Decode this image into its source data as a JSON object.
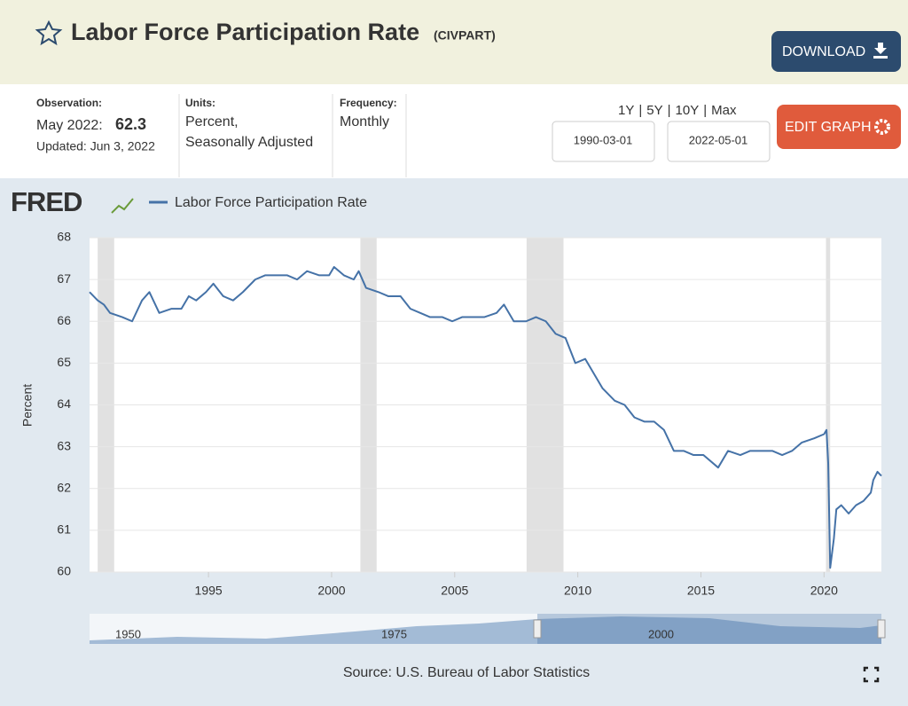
{
  "header": {
    "title": "Labor Force Participation Rate",
    "series_id": "(CIVPART)",
    "download": "DOWNLOAD"
  },
  "info": {
    "observation_label": "Observation:",
    "observation_date": "May 2022:",
    "observation_value": "62.3",
    "updated": "Updated: Jun 3, 2022",
    "units_label": "Units:",
    "units": [
      "Percent,",
      "Seasonally Adjusted"
    ],
    "frequency_label": "Frequency:",
    "frequency": "Monthly",
    "ranges": [
      "1Y",
      "5Y",
      "10Y",
      "Max"
    ],
    "range_separator": "|",
    "start_date": "1990-03-01",
    "end_date": "2022-05-01",
    "edit": "EDIT GRAPH"
  },
  "chart_data": {
    "type": "line",
    "logo": "FRED",
    "x": [
      1990.17,
      1990.5,
      1990.75,
      1991.0,
      1991.5,
      1991.9,
      1992.3,
      1992.6,
      1993.0,
      1993.5,
      1993.9,
      1994.2,
      1994.5,
      1994.9,
      1995.2,
      1995.6,
      1996.0,
      1996.4,
      1996.9,
      1997.3,
      1997.8,
      1998.2,
      1998.6,
      1999.0,
      1999.5,
      1999.9,
      2000.1,
      2000.5,
      2000.9,
      2001.1,
      2001.4,
      2001.9,
      2002.3,
      2002.8,
      2003.2,
      2003.6,
      2004.0,
      2004.5,
      2004.9,
      2005.3,
      2005.8,
      2006.2,
      2006.7,
      2007.0,
      2007.4,
      2007.9,
      2008.3,
      2008.7,
      2009.1,
      2009.5,
      2009.9,
      2010.3,
      2010.7,
      2011.0,
      2011.5,
      2011.9,
      2012.3,
      2012.7,
      2013.1,
      2013.5,
      2013.9,
      2014.3,
      2014.7,
      2015.1,
      2015.7,
      2016.1,
      2016.6,
      2017.0,
      2017.5,
      2017.9,
      2018.3,
      2018.7,
      2019.1,
      2019.6,
      2020.0,
      2020.1,
      2020.17,
      2020.25,
      2020.4,
      2020.5,
      2020.7,
      2021.0,
      2021.3,
      2021.6,
      2021.9,
      2022.0,
      2022.17,
      2022.33
    ],
    "series": [
      {
        "name": "Labor Force Participation Rate",
        "color": "#4572a7",
        "values": [
          66.7,
          66.5,
          66.4,
          66.2,
          66.1,
          66.0,
          66.5,
          66.7,
          66.2,
          66.3,
          66.3,
          66.6,
          66.5,
          66.7,
          66.9,
          66.6,
          66.5,
          66.7,
          67.0,
          67.1,
          67.1,
          67.1,
          67.0,
          67.2,
          67.1,
          67.1,
          67.3,
          67.1,
          67.0,
          67.2,
          66.8,
          66.7,
          66.6,
          66.6,
          66.3,
          66.2,
          66.1,
          66.1,
          66.0,
          66.1,
          66.1,
          66.1,
          66.2,
          66.4,
          66.0,
          66.0,
          66.1,
          66.0,
          65.7,
          65.6,
          65.0,
          65.1,
          64.7,
          64.4,
          64.1,
          64.0,
          63.7,
          63.6,
          63.6,
          63.4,
          62.9,
          62.9,
          62.8,
          62.8,
          62.5,
          62.9,
          62.8,
          62.9,
          62.9,
          62.9,
          62.8,
          62.9,
          63.1,
          63.2,
          63.3,
          63.4,
          62.6,
          60.1,
          60.8,
          61.5,
          61.6,
          61.4,
          61.6,
          61.7,
          61.9,
          62.2,
          62.4,
          62.3
        ]
      }
    ],
    "xlim": [
      1990.17,
      2022.33
    ],
    "xticks": [
      1995,
      2000,
      2005,
      2010,
      2015,
      2020
    ],
    "ylim": [
      60,
      68
    ],
    "yticks": [
      60,
      61,
      62,
      63,
      64,
      65,
      66,
      67,
      68
    ],
    "ylabel": "Percent",
    "grid": true,
    "recessions": [
      [
        1990.5,
        1991.17
      ],
      [
        2001.17,
        2001.83
      ],
      [
        2007.92,
        2009.42
      ],
      [
        2020.08,
        2020.25
      ]
    ],
    "navigator_labels": [
      "1950",
      "1975",
      "2000"
    ],
    "source": "Source: U.S. Bureau of Labor Statistics"
  }
}
